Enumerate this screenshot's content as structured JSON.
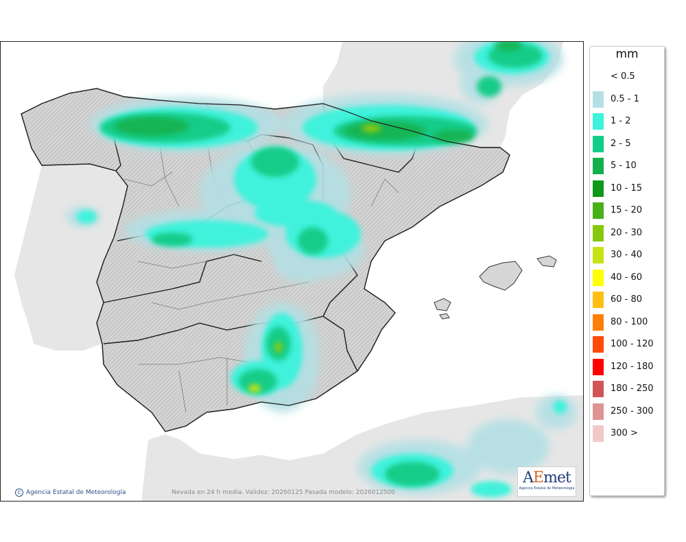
{
  "map": {
    "title": "",
    "region": "Iberian Peninsula and Balearic Islands",
    "variable": "Snowfall (Nevada)"
  },
  "footer": {
    "copyright_symbol": "C",
    "copyright": "Agencia Estatal de Meteorología",
    "validity": "Nevada en 24 h media. Validez: 20260125 Pasada modelo: 2026012500"
  },
  "logo": {
    "mark_a": "A",
    "mark_e": "E",
    "mark_rest": "met",
    "subtitle": "Agencia Estatal de Meteorología"
  },
  "legend": {
    "unit": "mm",
    "items": [
      {
        "label": "< 0.5",
        "color": "#ffffff"
      },
      {
        "label": "0.5 - 1",
        "color": "#b4e0e4"
      },
      {
        "label": "1 - 2",
        "color": "#3ff2dc"
      },
      {
        "label": "2 - 5",
        "color": "#12cc88"
      },
      {
        "label": "5 - 10",
        "color": "#12b04c"
      },
      {
        "label": "10 - 15",
        "color": "#0e9a18"
      },
      {
        "label": "15 - 20",
        "color": "#48b018"
      },
      {
        "label": "20 - 30",
        "color": "#86c80e"
      },
      {
        "label": "30 - 40",
        "color": "#c4e214"
      },
      {
        "label": "40 - 60",
        "color": "#ffff00"
      },
      {
        "label": "60 - 80",
        "color": "#ffbe14"
      },
      {
        "label": "80 - 100",
        "color": "#ff8008"
      },
      {
        "label": "100 - 120",
        "color": "#ff4a08"
      },
      {
        "label": "120 - 180",
        "color": "#ff0000"
      },
      {
        "label": "180 - 250",
        "color": "#d05656"
      },
      {
        "label": "250 - 300",
        "color": "#de9494"
      },
      {
        "label": "300 >",
        "color": "#f0c8c8"
      }
    ]
  },
  "colors": {
    "sea": "#ffffff",
    "foreign_land": "#e8e8e8",
    "spain_land": "#d6d6d6",
    "region_border": "#222222",
    "province_border": "#888888"
  }
}
